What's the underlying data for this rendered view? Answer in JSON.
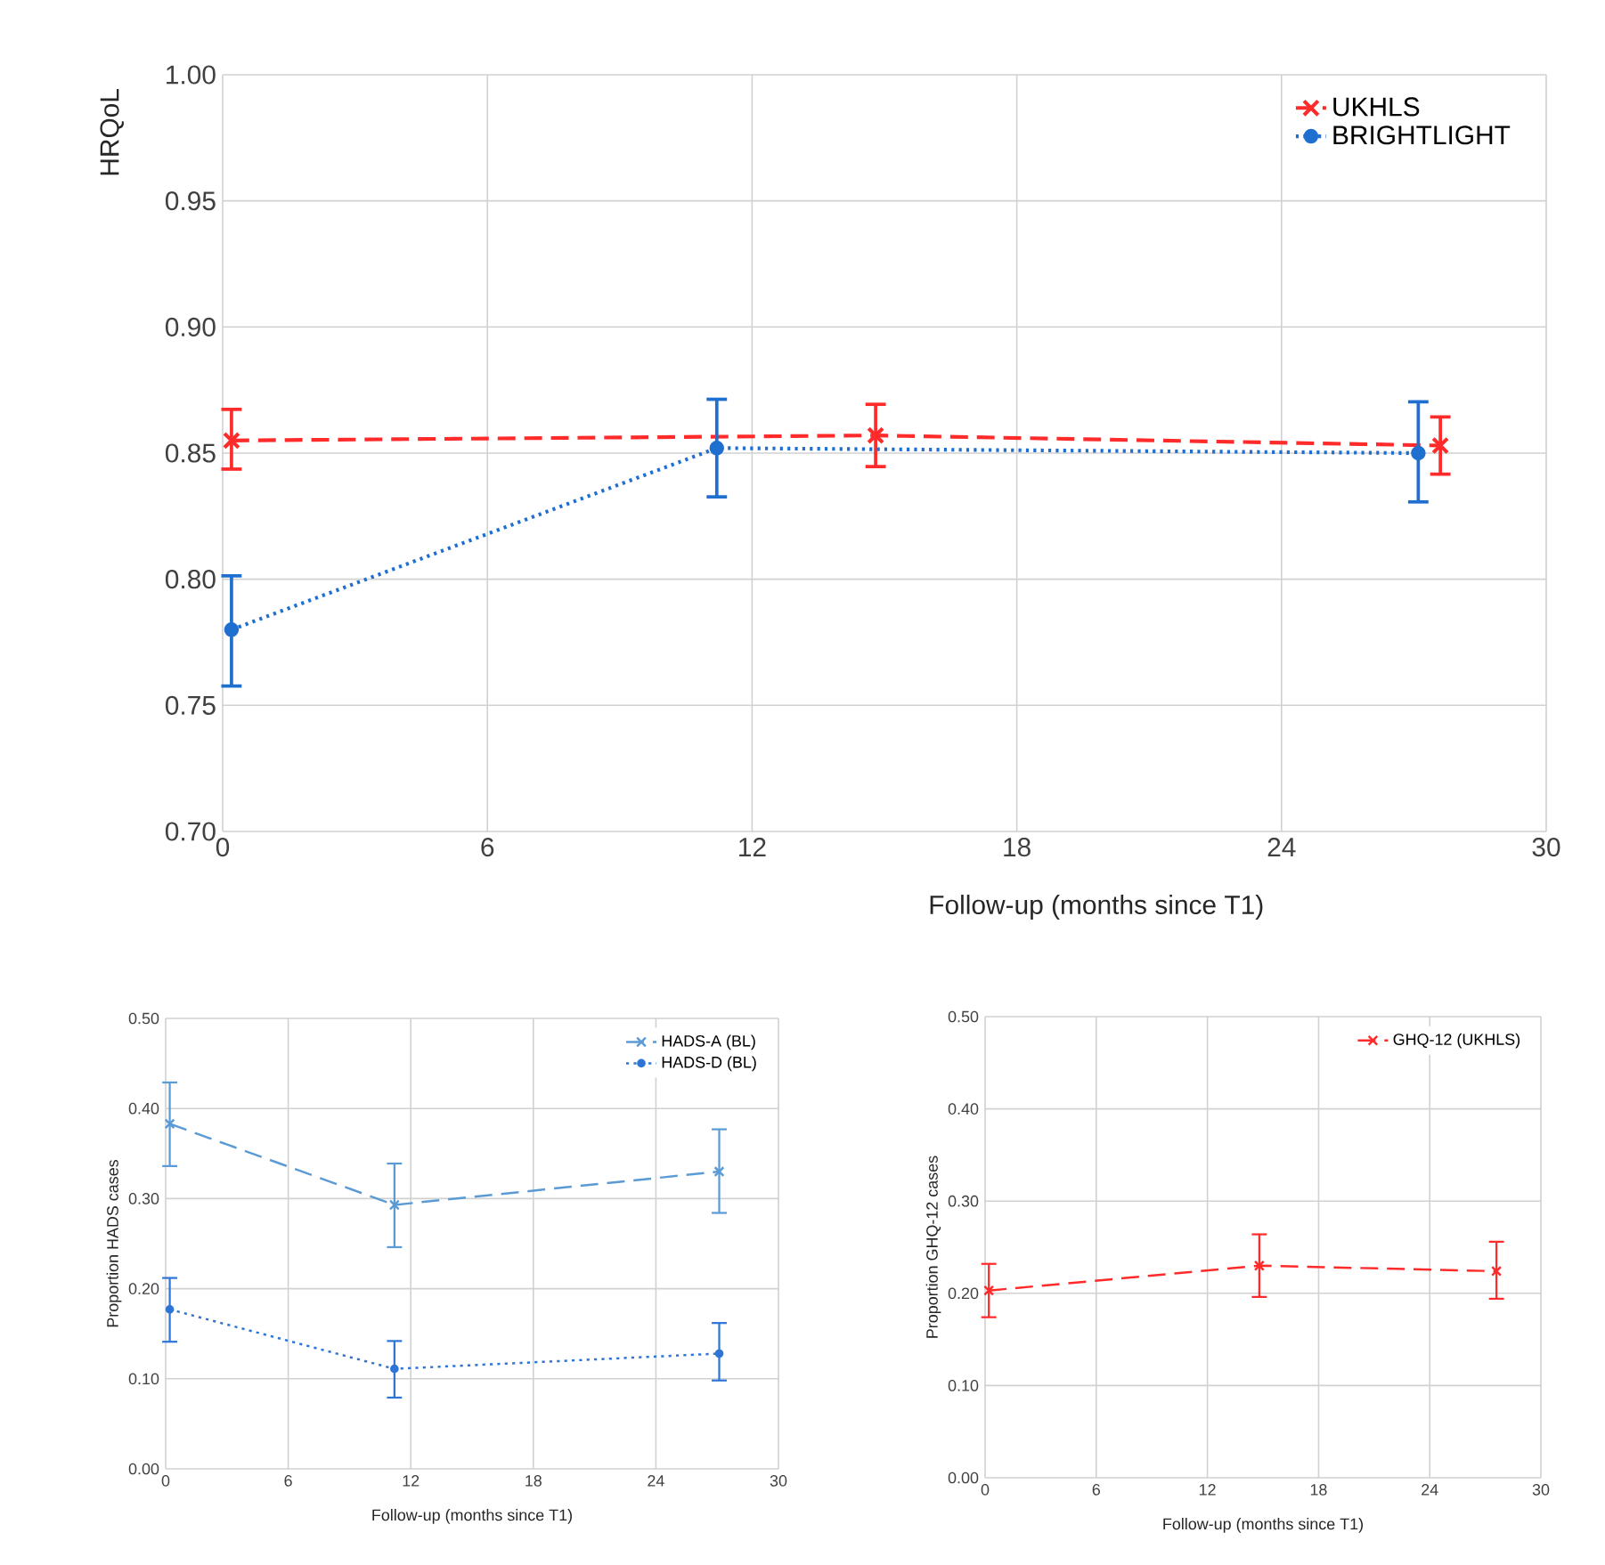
{
  "chart_data": [
    {
      "type": "line",
      "xlabel": "Follow-up (months since T1)",
      "ylabel": "HRQoL",
      "xlim": [
        0,
        30
      ],
      "xticks": [
        0,
        6,
        12,
        18,
        24,
        30
      ],
      "ylim": [
        0.7,
        1.0
      ],
      "yticks": [
        {
          "value": 0.7,
          "label": "0.70"
        },
        {
          "value": 0.75,
          "label": "0.75"
        },
        {
          "value": 0.8,
          "label": "0.80"
        },
        {
          "value": 0.85,
          "label": "0.85"
        },
        {
          "value": 0.9,
          "label": "0.90"
        },
        {
          "value": 0.95,
          "label": "0.95"
        },
        {
          "value": 1.0,
          "label": "1.00"
        }
      ],
      "grid": true,
      "legend": "top right",
      "series": [
        {
          "name": "UKHLS",
          "color": "#ff2a2a",
          "marker": "cross",
          "line_style": "dashed",
          "x": [
            0.2,
            14.8,
            27.6
          ],
          "values": [
            0.855,
            0.857,
            0.853
          ],
          "errors": [
            [
              0.843,
              0.868
            ],
            [
              0.844,
              0.87
            ],
            [
              0.841,
              0.865
            ]
          ]
        },
        {
          "name": "BRIGHTLIGHT",
          "color": "#1f6fd0",
          "marker": "circle",
          "line_style": "dotted",
          "x": [
            0.2,
            11.2,
            27.1
          ],
          "values": [
            0.78,
            0.852,
            0.85
          ],
          "errors": [
            [
              0.757,
              0.802
            ],
            [
              0.832,
              0.872
            ],
            [
              0.83,
              0.871
            ]
          ]
        }
      ]
    },
    {
      "type": "line",
      "xlabel": "Follow-up (months since T1)",
      "ylabel": "Proportion HADS cases",
      "xlim": [
        0,
        30
      ],
      "xticks": [
        0,
        6,
        12,
        18,
        24,
        30
      ],
      "ylim": [
        0,
        0.5
      ],
      "yticks": [
        {
          "value": 0,
          "label": "0.00"
        },
        {
          "value": 0.1,
          "label": "0.10"
        },
        {
          "value": 0.2,
          "label": "0.20"
        },
        {
          "value": 0.3,
          "label": "0.30"
        },
        {
          "value": 0.4,
          "label": "0.40"
        },
        {
          "value": 0.5,
          "label": "0.50"
        }
      ],
      "grid": true,
      "legend": "top right",
      "series": [
        {
          "name": "HADS-A (BL)",
          "color": "#5b9bd5",
          "marker": "cross",
          "line_style": "dashed",
          "x": [
            0.2,
            11.2,
            27.1
          ],
          "values": [
            0.383,
            0.293,
            0.33
          ],
          "errors": [
            [
              0.335,
              0.43
            ],
            [
              0.245,
              0.34
            ],
            [
              0.283,
              0.378
            ]
          ]
        },
        {
          "name": "HADS-D (BL)",
          "color": "#2e75d6",
          "marker": "circle",
          "line_style": "dotted",
          "x": [
            0.2,
            11.2,
            27.1
          ],
          "values": [
            0.177,
            0.111,
            0.128
          ],
          "errors": [
            [
              0.14,
              0.213
            ],
            [
              0.078,
              0.143
            ],
            [
              0.097,
              0.163
            ]
          ]
        }
      ]
    },
    {
      "type": "line",
      "xlabel": "Follow-up (months since T1)",
      "ylabel": "Proportion GHQ-12 cases",
      "xlim": [
        0,
        30
      ],
      "xticks": [
        0,
        6,
        12,
        18,
        24,
        30
      ],
      "ylim": [
        0,
        0.5
      ],
      "yticks": [
        {
          "value": 0,
          "label": "0.00"
        },
        {
          "value": 0.1,
          "label": "0.10"
        },
        {
          "value": 0.2,
          "label": "0.20"
        },
        {
          "value": 0.3,
          "label": "0.30"
        },
        {
          "value": 0.4,
          "label": "0.40"
        },
        {
          "value": 0.5,
          "label": "0.50"
        }
      ],
      "grid": true,
      "legend": "top right",
      "series": [
        {
          "name": "GHQ-12 (UKHLS)",
          "color": "#ff2a2a",
          "marker": "cross",
          "line_style": "dashed",
          "x": [
            0.2,
            14.8,
            27.6
          ],
          "values": [
            0.203,
            0.23,
            0.224
          ],
          "errors": [
            [
              0.173,
              0.233
            ],
            [
              0.195,
              0.265
            ],
            [
              0.193,
              0.257
            ]
          ]
        }
      ]
    }
  ]
}
